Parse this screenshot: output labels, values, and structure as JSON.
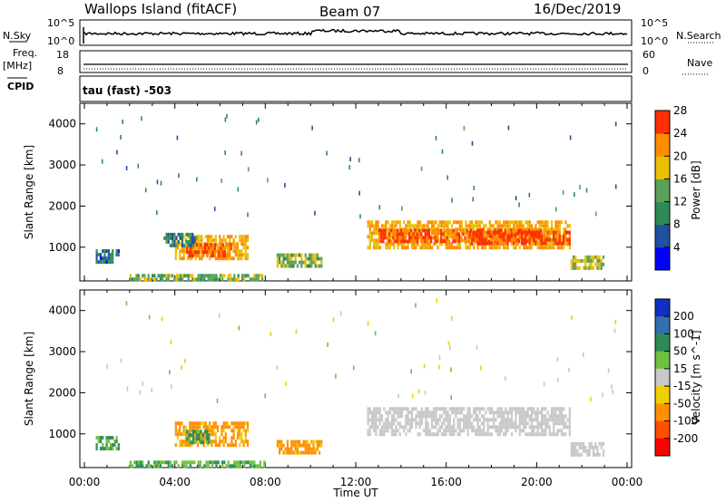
{
  "header": {
    "station": "Wallops Island (fitACF)",
    "beam": "Beam 07",
    "date": "16/Dec/2019"
  },
  "panel_labels": {
    "nsky": "N.Sky",
    "nsky_tick_top": "10^5",
    "nsky_tick_bottom": "10^0",
    "nsearch": "N.Search",
    "nsearch_tick_top": "10^5",
    "nsearch_tick_bottom": "10^0",
    "freq": "Freq.",
    "freq_unit": "[MHz]",
    "freq_tick_top": "18",
    "freq_tick_bottom": "8",
    "nave": "Nave",
    "nave_tick_top": "60",
    "nave_tick_bottom": "0",
    "cpid": "CPID",
    "cpid_value": "tau (fast) -503"
  },
  "x_axis": {
    "label": "Time UT",
    "ticks": [
      "00:00",
      "04:00",
      "08:00",
      "12:00",
      "16:00",
      "20:00",
      "00:00"
    ]
  },
  "chart_data": [
    {
      "type": "heatmap",
      "name": "power",
      "ylabel": "Slant Range [km]",
      "xlabel": "Time UT",
      "xlim_hours": [
        0,
        24
      ],
      "ylim_km": [
        180,
        4500
      ],
      "y_ticks": [
        "1000",
        "2000",
        "3000",
        "4000"
      ],
      "colorbar": {
        "label": "Power [dB]",
        "ticks": [
          "4",
          "8",
          "12",
          "16",
          "20",
          "24",
          "28"
        ],
        "range": [
          0,
          30
        ],
        "colors": [
          "#0000ff",
          "#2050a0",
          "#2e8b57",
          "#5aa05a",
          "#e8c000",
          "#ff8c00",
          "#ff3000"
        ]
      },
      "regions": [
        {
          "t": [
            0.5,
            1.5
          ],
          "r": [
            650,
            950
          ],
          "level": 7
        },
        {
          "t": [
            4.0,
            7.2
          ],
          "r": [
            750,
            1300
          ],
          "level": 20
        },
        {
          "t": [
            4.5,
            6.5
          ],
          "r": [
            800,
            1100
          ],
          "level": 24
        },
        {
          "t": [
            3.5,
            5.0
          ],
          "r": [
            1000,
            1350
          ],
          "level": 9
        },
        {
          "t": [
            8.5,
            10.5
          ],
          "r": [
            550,
            850
          ],
          "level": 14
        },
        {
          "t": [
            12.5,
            21.5
          ],
          "r": [
            1000,
            1650
          ],
          "level": 20
        },
        {
          "t": [
            13.0,
            20.5
          ],
          "r": [
            1150,
            1450
          ],
          "level": 24
        },
        {
          "t": [
            17.0,
            21.5
          ],
          "r": [
            1100,
            1400
          ],
          "level": 26
        },
        {
          "t": [
            21.5,
            23.0
          ],
          "r": [
            450,
            800
          ],
          "level": 16
        },
        {
          "t": [
            2.0,
            8.0
          ],
          "r": [
            200,
            350
          ],
          "level": 14
        }
      ]
    },
    {
      "type": "heatmap",
      "name": "velocity",
      "ylabel": "Slant Range [km]",
      "xlabel": "Time UT",
      "xlim_hours": [
        0,
        24
      ],
      "ylim_km": [
        180,
        4500
      ],
      "y_ticks": [
        "1000",
        "2000",
        "3000",
        "4000"
      ],
      "colorbar": {
        "label": "Velocity [m s^-1]",
        "ticks": [
          "200",
          "100",
          "50",
          "15",
          "-15",
          "-50",
          "-100",
          "-200"
        ],
        "colors": [
          "#1030c0",
          "#3070b0",
          "#2e8b57",
          "#70c040",
          "#c8c8c8",
          "#f0d000",
          "#ff9000",
          "#ff5000",
          "#ff0000"
        ]
      },
      "regions": [
        {
          "t": [
            0.5,
            1.5
          ],
          "r": [
            650,
            950
          ],
          "v": 30
        },
        {
          "t": [
            4.0,
            7.2
          ],
          "r": [
            750,
            1300
          ],
          "v": -40
        },
        {
          "t": [
            4.5,
            5.5
          ],
          "r": [
            800,
            1100
          ],
          "v": 40
        },
        {
          "t": [
            8.5,
            10.5
          ],
          "r": [
            550,
            850
          ],
          "v": -40
        },
        {
          "t": [
            12.5,
            21.5
          ],
          "r": [
            1000,
            1650
          ],
          "v": 0
        },
        {
          "t": [
            21.5,
            23.0
          ],
          "r": [
            450,
            800
          ],
          "v": 0
        },
        {
          "t": [
            2.0,
            8.0
          ],
          "r": [
            200,
            350
          ],
          "v": 30
        }
      ]
    }
  ]
}
